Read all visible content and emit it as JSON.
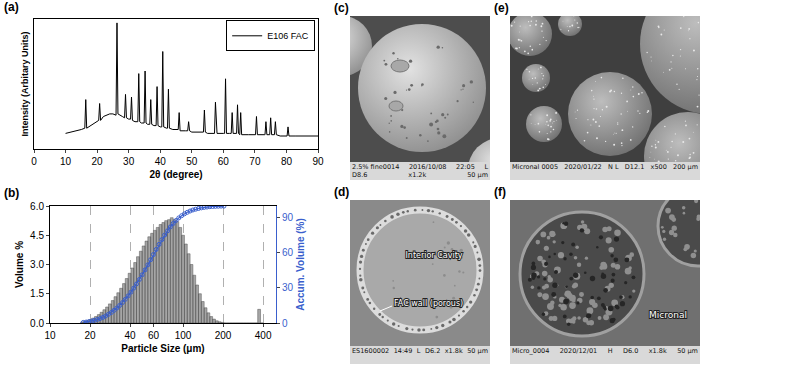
{
  "chart_data": [
    {
      "panel_label": "(a)",
      "type": "line",
      "xlabel": "2θ (degree)",
      "ylabel": "Intensity (Arbitary Units)",
      "x": [
        10,
        12,
        14,
        15,
        16.1,
        16.4,
        16.7,
        18,
        20,
        20.5,
        20.8,
        21.1,
        22,
        24,
        25,
        26.0,
        26.3,
        26.6,
        28,
        28.7,
        29.0,
        29.3,
        30,
        30.6,
        30.9,
        31.2,
        32,
        32.9,
        33.2,
        33.5,
        34,
        34.9,
        35.2,
        35.5,
        36,
        36.7,
        37.0,
        37.3,
        38,
        38.7,
        39.0,
        39.3,
        40,
        40.5,
        40.8,
        41.1,
        42,
        42.3,
        42.6,
        42.9,
        44,
        45.7,
        46.0,
        46.3,
        48,
        48.7,
        49.0,
        49.3,
        50,
        52,
        53.7,
        54.0,
        54.3,
        55,
        57.2,
        57.5,
        57.8,
        58,
        60,
        60.4,
        60.7,
        61.0,
        62,
        62.5,
        62.8,
        63.1,
        64.2,
        64.5,
        64.8,
        65.2,
        65.5,
        65.8,
        68,
        70,
        70.2,
        70.5,
        70.8,
        73,
        73.2,
        73.5,
        73.8,
        74.7,
        75.0,
        75.3,
        76.2,
        76.5,
        76.8,
        78,
        80,
        80.2,
        80.5,
        80.8,
        83,
        85,
        88,
        90
      ],
      "series": [
        {
          "name": "E106 FAC",
          "color": "#000000",
          "values": [
            12,
            13,
            14,
            15,
            16,
            38,
            16,
            18,
            21,
            22,
            35,
            22,
            25,
            27,
            27,
            26,
            97,
            27,
            25,
            24,
            42,
            24,
            23,
            23,
            40,
            22,
            21,
            21,
            58,
            21,
            20,
            20,
            60,
            20,
            19,
            19,
            38,
            19,
            18,
            18,
            48,
            18,
            17,
            17,
            75,
            17,
            16,
            16,
            46,
            16,
            15,
            15,
            28,
            14,
            14,
            14,
            21,
            14,
            13,
            13,
            13,
            30,
            13,
            12,
            12,
            36,
            12,
            12,
            12,
            12,
            54,
            12,
            12,
            12,
            28,
            12,
            12,
            34,
            12,
            11,
            28,
            11,
            11,
            11,
            11,
            25,
            11,
            11,
            11,
            21,
            11,
            11,
            24,
            11,
            11,
            21,
            11,
            10,
            10,
            10,
            17,
            10,
            10,
            10,
            10,
            10
          ]
        }
      ],
      "xlim": [
        0,
        90
      ],
      "xticks": [
        0,
        10,
        20,
        30,
        40,
        50,
        60,
        70,
        80,
        90
      ],
      "ylim": [
        0,
        100
      ],
      "tick_labels": "x",
      "grid": false,
      "legend": "top right"
    },
    {
      "panel_label": "(b)",
      "type": "histogram",
      "xlabel": "Particle Size (μm)",
      "ylabel": "Volume %",
      "y2label": "Accum. Volume (%)",
      "bins": [
        17.0,
        17.8,
        18.7,
        19.6,
        20.6,
        21.6,
        22.7,
        23.8,
        25.0,
        26.2,
        27.5,
        28.9,
        30.3,
        31.8,
        33.4,
        35.1,
        36.8,
        38.7,
        40.6,
        42.6,
        44.7,
        47.0,
        49.3,
        51.8,
        54.4,
        57.1,
        59.9,
        62.9,
        66.1,
        69.4,
        72.8,
        76.5,
        80.3,
        84.3,
        88.5,
        92.9,
        97.6,
        102.5,
        107.6,
        113.0,
        118.6,
        124.5,
        130.8,
        137.3,
        144.2,
        151.4,
        159.0,
        166.9,
        175.2,
        184.0,
        193.2,
        202.9,
        213.0,
        223.7,
        234.9,
        246.6,
        258.9,
        271.9,
        285.5,
        299.7,
        314.7,
        330.5,
        347.0,
        364.3,
        382.5,
        401.6
      ],
      "counts": [
        0.05,
        0.08,
        0.12,
        0.18,
        0.25,
        0.33,
        0.43,
        0.55,
        0.68,
        0.82,
        0.98,
        1.15,
        1.35,
        1.55,
        1.78,
        2.02,
        2.28,
        2.55,
        2.82,
        3.1,
        3.4,
        3.68,
        3.95,
        4.2,
        4.42,
        4.6,
        4.75,
        4.9,
        5.05,
        5.15,
        5.25,
        5.3,
        5.4,
        5.3,
        5.2,
        4.9,
        4.5,
        4.05,
        3.55,
        3.0,
        2.45,
        1.95,
        1.5,
        1.1,
        0.78,
        0.52,
        0.33,
        0.2,
        0.11,
        0.06,
        0.03,
        0,
        0,
        0,
        0,
        0,
        0,
        0,
        0,
        0,
        0,
        0,
        0,
        0.7,
        0
      ],
      "color": "#a6a6a6",
      "series": [
        {
          "type": "line",
          "axis": "y2",
          "color": "#3a5fcd",
          "marker": "open circle",
          "x": [
            17.8,
            18.7,
            19.6,
            20.6,
            21.6,
            22.7,
            23.8,
            25.0,
            26.2,
            27.5,
            28.9,
            30.3,
            31.8,
            33.4,
            35.1,
            36.8,
            38.7,
            40.6,
            42.6,
            44.7,
            47.0,
            49.3,
            51.8,
            54.4,
            57.1,
            59.9,
            62.9,
            66.1,
            69.4,
            72.8,
            76.5,
            80.3,
            84.3,
            88.5,
            92.9,
            97.6,
            102.5,
            107.6,
            113.0,
            118.6,
            124.5,
            130.8,
            137.3,
            144.2,
            151.4,
            159.0,
            166.9,
            175.2,
            184.0,
            193.2,
            202.9
          ],
          "values": [
            0.5,
            0.8,
            1.2,
            1.7,
            2.3,
            3.0,
            3.8,
            4.8,
            6.0,
            7.4,
            9.0,
            10.8,
            12.8,
            15.0,
            17.5,
            20.2,
            23.2,
            26.4,
            29.8,
            33.4,
            37.2,
            41.2,
            45.4,
            49.7,
            54.1,
            58.5,
            62.9,
            67.2,
            71.3,
            75.2,
            78.8,
            82.1,
            85.0,
            87.6,
            89.8,
            91.7,
            93.3,
            94.6,
            95.7,
            96.6,
            97.3,
            97.9,
            98.4,
            98.8,
            99.1,
            99.4,
            99.6,
            99.7,
            99.8,
            99.9,
            99.9
          ]
        }
      ],
      "log": "x",
      "xlim": [
        10,
        500
      ],
      "xticks": [
        10,
        20,
        40,
        60,
        100,
        200,
        400
      ],
      "ylim": [
        0,
        6
      ],
      "yticks": [
        {
          "value": 0,
          "label": "0.0"
        },
        1.5,
        {
          "value": 3,
          "label": "3.0"
        },
        4.5,
        {
          "value": 6,
          "label": "6.0"
        }
      ],
      "y2lim": [
        0,
        100
      ],
      "y2ticks": [
        0,
        30,
        60,
        90
      ],
      "grid": true
    }
  ],
  "images": [
    {
      "panel_label": "(c)",
      "footer": [
        "2.5% fine0014",
        "2016/10/08",
        "22:05",
        "L",
        "D8.6",
        "x1.2k",
        "50 μm"
      ],
      "annotations": []
    },
    {
      "panel_label": "(d)",
      "footer": [
        "ES1600002",
        "14:49",
        "L",
        "D6.2",
        "x1.8k",
        "50 μm"
      ],
      "annotations": [
        "Interior Cavity",
        "FAC wall (porous)"
      ]
    },
    {
      "panel_label": "(e)",
      "footer": [
        "Micronal 0005",
        "2020/01/22",
        "N L",
        "D12.1",
        "x500",
        "200 μm"
      ],
      "annotations": []
    },
    {
      "panel_label": "(f)",
      "footer": [
        "Micro_0004",
        "2020/12/01",
        "H",
        "D6.0",
        "x1.8k",
        "50 μm"
      ],
      "annotations": [
        "Micronal"
      ]
    }
  ]
}
